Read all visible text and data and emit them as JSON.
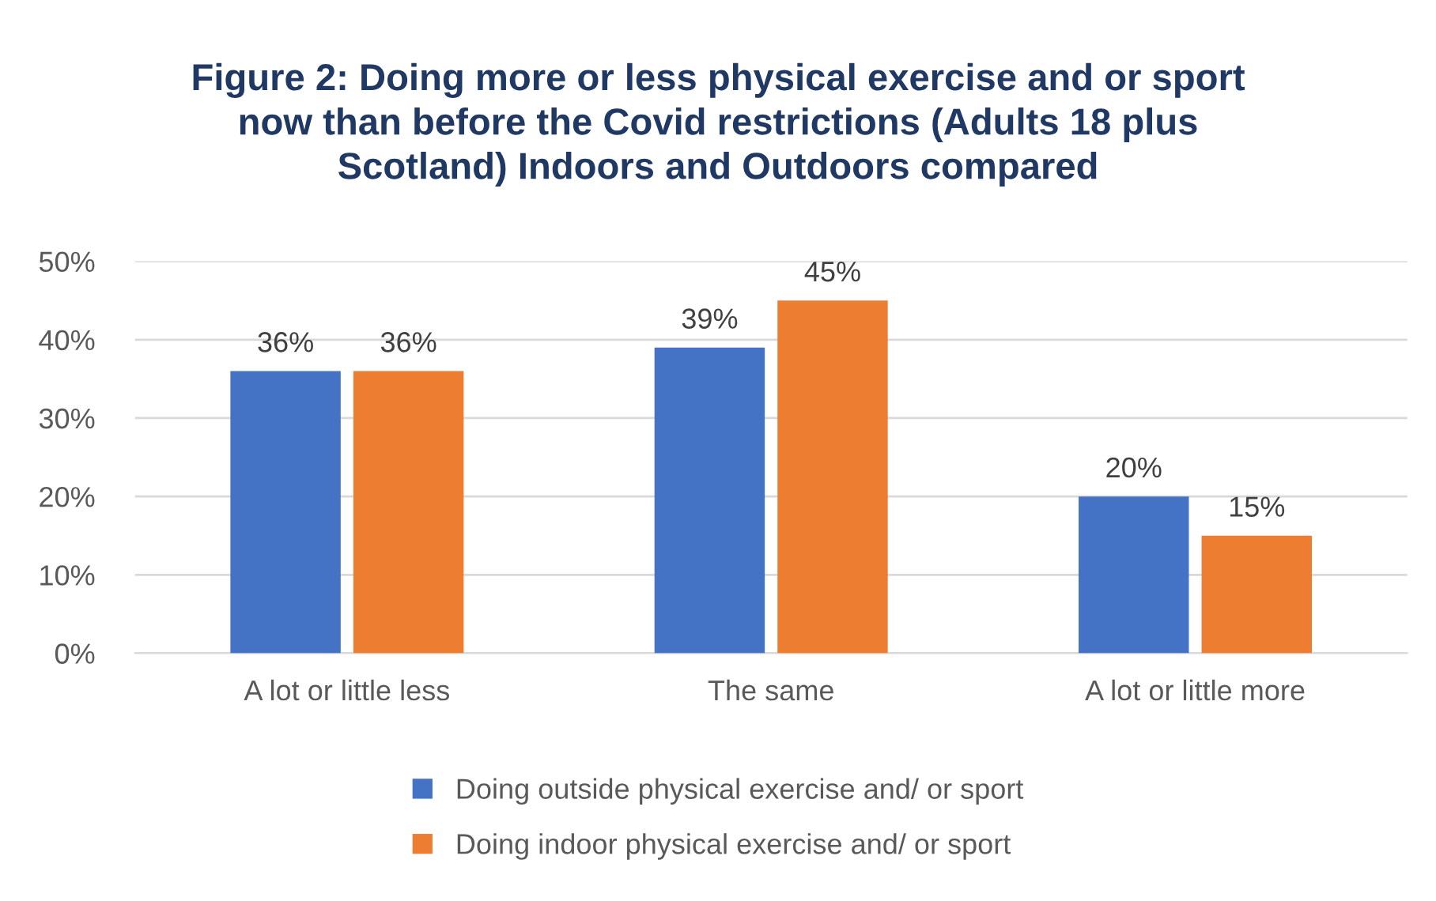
{
  "chart_data": {
    "type": "bar",
    "title": "Figure 2: Doing more or less physical exercise and or sport\nnow than before the Covid restrictions (Adults 18 plus\nScotland) Indoors and Outdoors compared",
    "categories": [
      "A lot or little less",
      "The same",
      "A lot or little more"
    ],
    "series": [
      {
        "name": "Doing outside physical exercise and/ or sport",
        "color": "#4472c4",
        "values": [
          36,
          39,
          20
        ]
      },
      {
        "name": "Doing indoor physical exercise and/ or sport",
        "color": "#ed7d31",
        "values": [
          36,
          45,
          15
        ]
      }
    ],
    "ylim": [
      0,
      50
    ],
    "yticks": [
      {
        "value": 0,
        "label": "0%"
      },
      {
        "value": 10,
        "label": "10%"
      },
      {
        "value": 20,
        "label": "20%"
      },
      {
        "value": 30,
        "label": "30%"
      },
      {
        "value": 40,
        "label": "40%"
      },
      {
        "value": 50,
        "label": "50%"
      }
    ],
    "value_labels": [
      [
        "36%",
        "39%",
        "20%"
      ],
      [
        "36%",
        "45%",
        "15%"
      ]
    ],
    "grid": "y",
    "legend": "bottom"
  }
}
